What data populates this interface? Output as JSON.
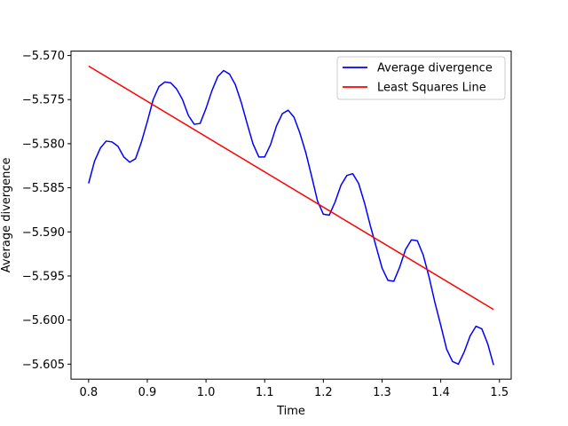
{
  "chart_data": {
    "type": "line",
    "xlabel": "Time",
    "ylabel": "Average divergence",
    "xlim": [
      0.77,
      1.52
    ],
    "ylim": [
      -5.6067,
      -5.5695
    ],
    "xticks": [
      0.8,
      0.9,
      1.0,
      1.1,
      1.2,
      1.3,
      1.4,
      1.5
    ],
    "xtick_labels": [
      "0.8",
      "0.9",
      "1.0",
      "1.1",
      "1.2",
      "1.3",
      "1.4",
      "1.5"
    ],
    "yticks": [
      -5.57,
      -5.575,
      -5.58,
      -5.585,
      -5.59,
      -5.595,
      -5.6,
      -5.605
    ],
    "ytick_labels": [
      "−5.570",
      "−5.575",
      "−5.580",
      "−5.585",
      "−5.590",
      "−5.595",
      "−5.600",
      "−5.605"
    ],
    "grid": false,
    "legend_position": "top-right",
    "series": [
      {
        "name": "Average divergence",
        "color": "#0000ff",
        "x": [
          0.8,
          0.81,
          0.82,
          0.83,
          0.84,
          0.85,
          0.86,
          0.87,
          0.88,
          0.89,
          0.9,
          0.91,
          0.92,
          0.93,
          0.94,
          0.95,
          0.96,
          0.97,
          0.98,
          0.99,
          1.0,
          1.01,
          1.02,
          1.03,
          1.04,
          1.05,
          1.06,
          1.07,
          1.08,
          1.09,
          1.1,
          1.11,
          1.12,
          1.13,
          1.14,
          1.15,
          1.16,
          1.17,
          1.18,
          1.19,
          1.2,
          1.21,
          1.22,
          1.23,
          1.24,
          1.25,
          1.26,
          1.27,
          1.28,
          1.29,
          1.3,
          1.31,
          1.32,
          1.33,
          1.34,
          1.35,
          1.36,
          1.37,
          1.38,
          1.39,
          1.4,
          1.41,
          1.42,
          1.43,
          1.44,
          1.45,
          1.46,
          1.47,
          1.48,
          1.49
        ],
        "y": [
          -5.5845,
          -5.582,
          -5.5805,
          -5.5797,
          -5.5798,
          -5.5803,
          -5.5815,
          -5.5821,
          -5.5817,
          -5.5798,
          -5.5775,
          -5.575,
          -5.5735,
          -5.573,
          -5.5731,
          -5.5738,
          -5.575,
          -5.5768,
          -5.5778,
          -5.5777,
          -5.576,
          -5.574,
          -5.5724,
          -5.5717,
          -5.5721,
          -5.5733,
          -5.5753,
          -5.5777,
          -5.58,
          -5.5815,
          -5.5815,
          -5.5801,
          -5.578,
          -5.5766,
          -5.5762,
          -5.577,
          -5.5788,
          -5.581,
          -5.5837,
          -5.5865,
          -5.588,
          -5.5881,
          -5.5866,
          -5.5847,
          -5.5836,
          -5.5834,
          -5.5845,
          -5.5867,
          -5.5893,
          -5.5917,
          -5.5941,
          -5.5955,
          -5.5956,
          -5.594,
          -5.592,
          -5.5909,
          -5.591,
          -5.5926,
          -5.5951,
          -5.598,
          -5.6006,
          -5.6033,
          -5.6047,
          -5.605,
          -5.6036,
          -5.6018,
          -5.6007,
          -5.601,
          -5.6027,
          -5.6051
        ]
      },
      {
        "name": "Least Squares Line",
        "color": "#ff0000",
        "x": [
          0.8,
          1.49
        ],
        "y": [
          -5.5712,
          -5.5988
        ]
      }
    ]
  }
}
